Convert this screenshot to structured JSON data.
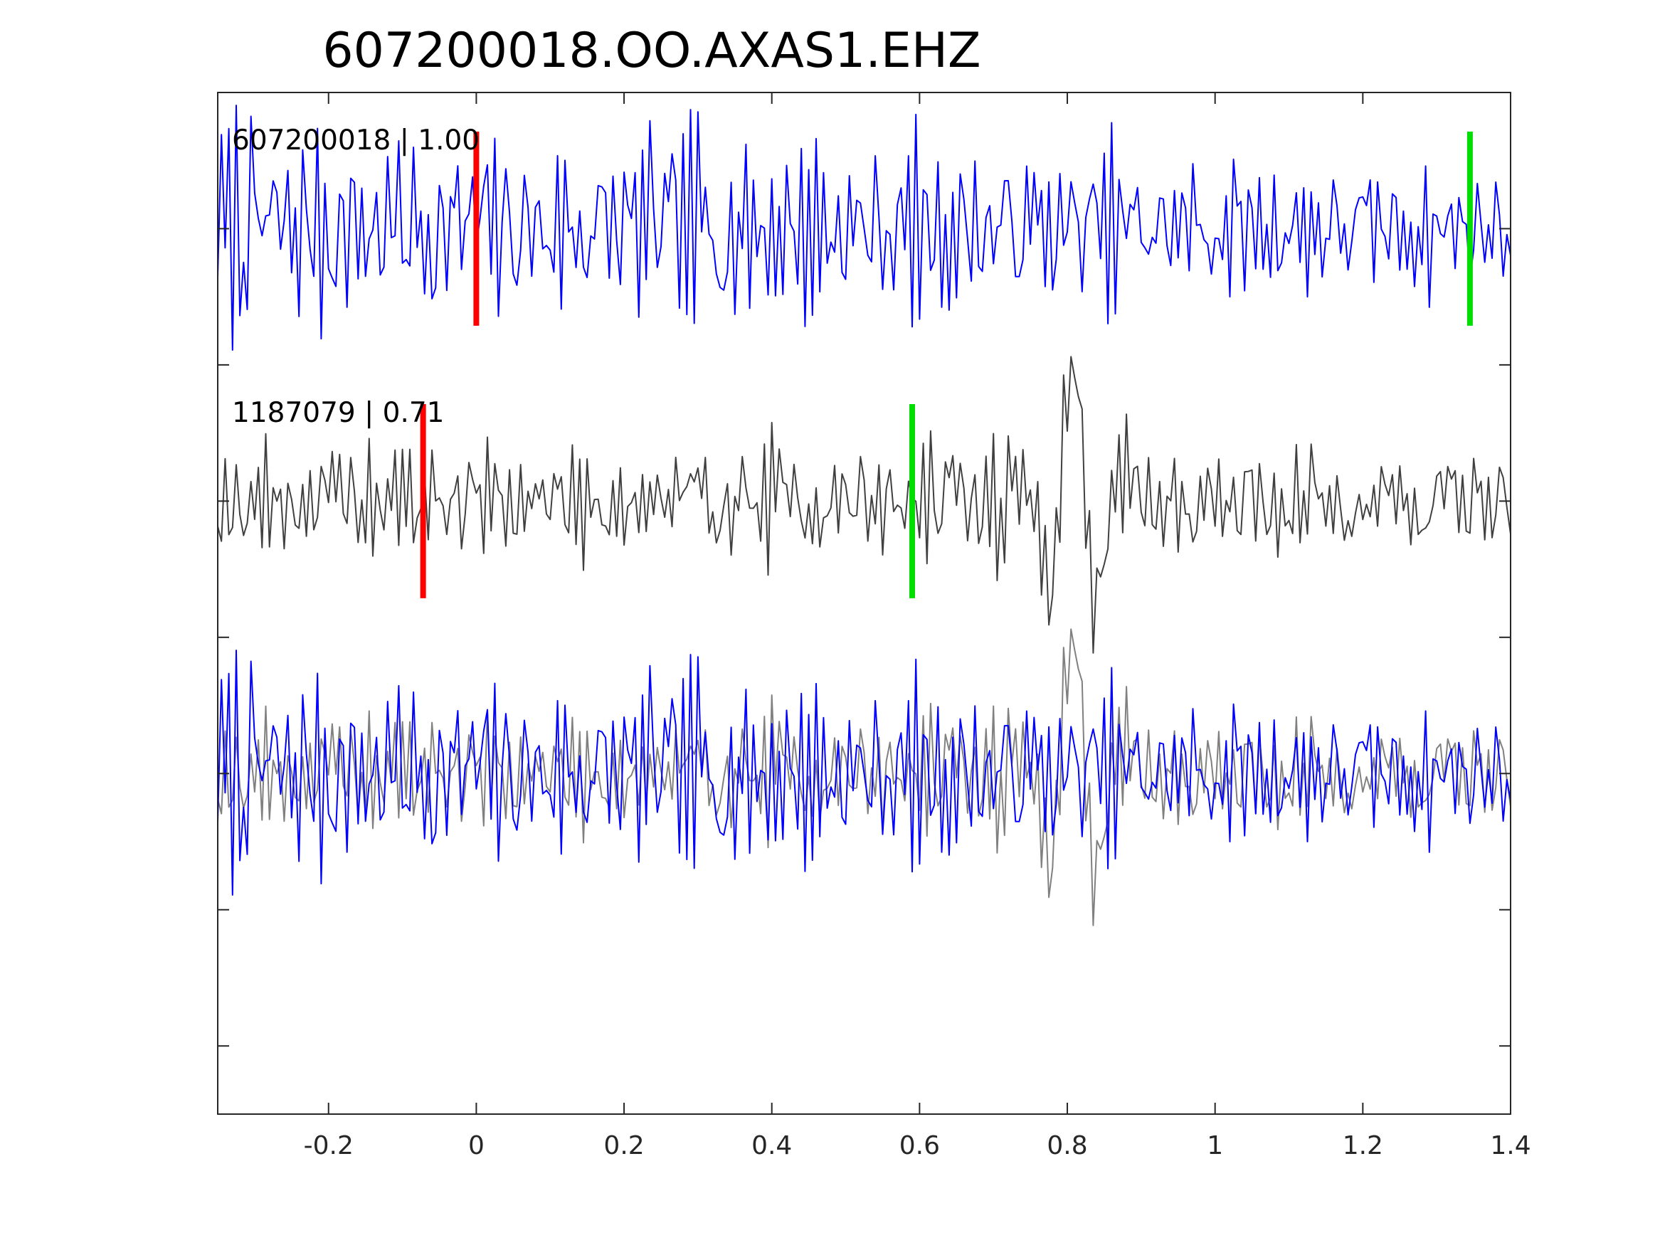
{
  "chart_data": {
    "type": "line",
    "title": "607200018.OO.AXAS1.EHZ",
    "xlabel": "",
    "ylabel": "",
    "xlim": [
      -0.35,
      1.4
    ],
    "ylim": [
      0,
      1
    ],
    "grid": false,
    "x_ticks": [
      "-0.2",
      "0",
      "0.2",
      "0.4",
      "0.6",
      "0.8",
      "1",
      "1.2",
      "1.4"
    ],
    "x_tick_values": [
      -0.2,
      0,
      0.2,
      0.4,
      0.6,
      0.8,
      1,
      1.2,
      1.4
    ],
    "y_tick_values": [
      0.0667,
      0.3333,
      0.6,
      0.8667
    ],
    "traces": [
      {
        "id": "607200018",
        "label": "607200018 | 1.00",
        "color": "#0000ff",
        "baseline": 0.8667,
        "amplitude": 0.095,
        "seed": 7,
        "decay": 0.45,
        "picks": [
          {
            "x": 0.0,
            "color": "#ff0000"
          },
          {
            "x": 1.345,
            "color": "#00dd00"
          }
        ]
      },
      {
        "id": "1187079",
        "label": "1187079 | 0.71",
        "color": "#404040",
        "baseline": 0.6,
        "amplitude": 0.05,
        "seed": 19,
        "decay": 0.0,
        "burst_x": 0.81,
        "burst_amp": 0.16,
        "picks": [
          {
            "x": -0.072,
            "color": "#ff0000"
          },
          {
            "x": 0.59,
            "color": "#00dd00"
          }
        ]
      }
    ],
    "overlay": {
      "baseline": 0.3333,
      "colors": [
        "#0000ff",
        "#808080"
      ]
    },
    "colors": {
      "axis": "#262626",
      "background": "#ffffff"
    }
  }
}
